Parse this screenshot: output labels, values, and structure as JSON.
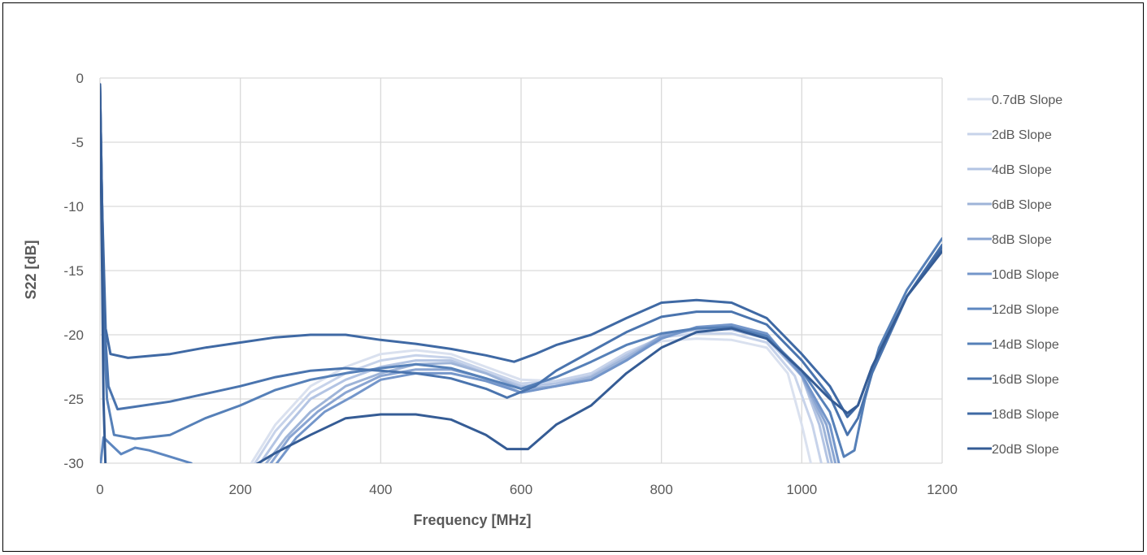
{
  "chart_data": {
    "type": "line",
    "title": "",
    "xlabel": "Frequency [MHz]",
    "ylabel": "S22 [dB]",
    "xlim": [
      0,
      1200
    ],
    "ylim": [
      -30,
      0
    ],
    "xticks": [
      "0",
      "200",
      "400",
      "600",
      "800",
      "1000",
      "1200"
    ],
    "yticks": [
      "0",
      "-5",
      "-10",
      "-15",
      "-20",
      "-25",
      "-30"
    ],
    "grid": true,
    "legend_position": "right",
    "series": [
      {
        "name": "0.7dB Slope",
        "color": "#dae1ef",
        "points": [
          [
            210,
            -30.5
          ],
          [
            250,
            -27
          ],
          [
            300,
            -24
          ],
          [
            350,
            -22.5
          ],
          [
            400,
            -21.5
          ],
          [
            450,
            -21.2
          ],
          [
            500,
            -21.5
          ],
          [
            550,
            -22.5
          ],
          [
            600,
            -23.5
          ],
          [
            650,
            -23.6
          ],
          [
            700,
            -23
          ],
          [
            750,
            -21.5
          ],
          [
            800,
            -20.5
          ],
          [
            850,
            -20.3
          ],
          [
            900,
            -20.4
          ],
          [
            950,
            -21
          ],
          [
            980,
            -23
          ],
          [
            1000,
            -27
          ],
          [
            1015,
            -30.5
          ]
        ]
      },
      {
        "name": "2dB Slope",
        "color": "#c7d3ea",
        "points": [
          [
            215,
            -30.5
          ],
          [
            250,
            -27.5
          ],
          [
            300,
            -24.5
          ],
          [
            350,
            -23
          ],
          [
            400,
            -22
          ],
          [
            450,
            -21.6
          ],
          [
            500,
            -21.8
          ],
          [
            550,
            -22.8
          ],
          [
            600,
            -23.8
          ],
          [
            650,
            -23.6
          ],
          [
            700,
            -23
          ],
          [
            750,
            -21.4
          ],
          [
            800,
            -20.2
          ],
          [
            850,
            -19.9
          ],
          [
            900,
            -19.9
          ],
          [
            950,
            -20.6
          ],
          [
            990,
            -23.2
          ],
          [
            1015,
            -27
          ],
          [
            1030,
            -30.5
          ]
        ]
      },
      {
        "name": "4dB Slope",
        "color": "#b3c4e3",
        "points": [
          [
            222,
            -30.5
          ],
          [
            260,
            -27.5
          ],
          [
            300,
            -25
          ],
          [
            350,
            -23.5
          ],
          [
            400,
            -22.5
          ],
          [
            450,
            -22
          ],
          [
            500,
            -22
          ],
          [
            550,
            -23
          ],
          [
            600,
            -24
          ],
          [
            650,
            -23.8
          ],
          [
            700,
            -23.2
          ],
          [
            750,
            -21.6
          ],
          [
            800,
            -20.1
          ],
          [
            850,
            -19.6
          ],
          [
            900,
            -19.6
          ],
          [
            950,
            -20.3
          ],
          [
            1000,
            -23.2
          ],
          [
            1025,
            -27
          ],
          [
            1040,
            -30.5
          ]
        ]
      },
      {
        "name": "6dB Slope",
        "color": "#9eb4d8",
        "points": [
          [
            230,
            -30.5
          ],
          [
            265,
            -28
          ],
          [
            300,
            -26
          ],
          [
            350,
            -24
          ],
          [
            400,
            -23
          ],
          [
            450,
            -22.3
          ],
          [
            500,
            -22.2
          ],
          [
            550,
            -23
          ],
          [
            600,
            -24.2
          ],
          [
            650,
            -24
          ],
          [
            700,
            -23.3
          ],
          [
            750,
            -21.8
          ],
          [
            800,
            -20.1
          ],
          [
            850,
            -19.5
          ],
          [
            900,
            -19.4
          ],
          [
            950,
            -20.1
          ],
          [
            1000,
            -23.2
          ],
          [
            1030,
            -27
          ],
          [
            1045,
            -30.5
          ]
        ]
      },
      {
        "name": "8dB Slope",
        "color": "#8aa5d2",
        "points": [
          [
            237,
            -30.5
          ],
          [
            270,
            -28
          ],
          [
            310,
            -26
          ],
          [
            350,
            -24.5
          ],
          [
            400,
            -23.2
          ],
          [
            450,
            -22.7
          ],
          [
            500,
            -22.7
          ],
          [
            550,
            -23.4
          ],
          [
            600,
            -24.5
          ],
          [
            650,
            -24
          ],
          [
            700,
            -23.5
          ],
          [
            750,
            -22
          ],
          [
            800,
            -20.1
          ],
          [
            850,
            -19.5
          ],
          [
            900,
            -19.3
          ],
          [
            950,
            -20
          ],
          [
            1000,
            -23.2
          ],
          [
            1035,
            -27
          ],
          [
            1050,
            -30.5
          ]
        ]
      },
      {
        "name": "10dB Slope",
        "color": "#7496ca",
        "points": [
          [
            245,
            -30.5
          ],
          [
            280,
            -28
          ],
          [
            320,
            -26
          ],
          [
            360,
            -24.8
          ],
          [
            400,
            -23.5
          ],
          [
            450,
            -23
          ],
          [
            500,
            -23
          ],
          [
            550,
            -23.6
          ],
          [
            600,
            -24.5
          ],
          [
            650,
            -24
          ],
          [
            700,
            -23.5
          ],
          [
            750,
            -22
          ],
          [
            800,
            -20.3
          ],
          [
            850,
            -19.4
          ],
          [
            900,
            -19.2
          ],
          [
            950,
            -19.9
          ],
          [
            1000,
            -23.1
          ],
          [
            1040,
            -27
          ],
          [
            1055,
            -30.5
          ]
        ]
      },
      {
        "name": "12dB Slope",
        "color": "#5e87c0",
        "points": [
          [
            0,
            -30.5
          ],
          [
            5,
            -28
          ],
          [
            30,
            -29.3
          ],
          [
            50,
            -28.8
          ],
          [
            70,
            -29
          ],
          [
            100,
            -29.5
          ],
          [
            130,
            -30
          ],
          [
            137,
            -30.5
          ]
        ]
      },
      {
        "name": "14dB Slope",
        "color": "#5680b8",
        "points": [
          [
            0,
            -0.5
          ],
          [
            3,
            -10
          ],
          [
            6,
            -20
          ],
          [
            10,
            -25
          ],
          [
            20,
            -27.8
          ],
          [
            50,
            -28.1
          ],
          [
            100,
            -27.8
          ],
          [
            150,
            -26.5
          ],
          [
            200,
            -25.5
          ],
          [
            250,
            -24.3
          ],
          [
            300,
            -23.5
          ],
          [
            350,
            -23
          ],
          [
            400,
            -22.6
          ],
          [
            450,
            -22.3
          ],
          [
            500,
            -22.6
          ],
          [
            550,
            -23.4
          ],
          [
            600,
            -24.2
          ],
          [
            650,
            -23.3
          ],
          [
            700,
            -22.1
          ],
          [
            750,
            -20.8
          ],
          [
            800,
            -19.9
          ],
          [
            850,
            -19.5
          ],
          [
            900,
            -19.4
          ],
          [
            950,
            -20.1
          ],
          [
            1000,
            -22.8
          ],
          [
            1040,
            -26
          ],
          [
            1060,
            -29.5
          ],
          [
            1075,
            -29
          ],
          [
            1090,
            -25
          ],
          [
            1110,
            -21
          ],
          [
            1150,
            -16.5
          ],
          [
            1200,
            -12.5
          ]
        ]
      },
      {
        "name": "16dB Slope",
        "color": "#4a74ae",
        "points": [
          [
            0,
            -0.5
          ],
          [
            3,
            -10
          ],
          [
            7,
            -19.5
          ],
          [
            12,
            -24
          ],
          [
            25,
            -25.8
          ],
          [
            50,
            -25.6
          ],
          [
            100,
            -25.2
          ],
          [
            150,
            -24.6
          ],
          [
            200,
            -24
          ],
          [
            250,
            -23.3
          ],
          [
            300,
            -22.8
          ],
          [
            350,
            -22.6
          ],
          [
            400,
            -22.8
          ],
          [
            450,
            -23
          ],
          [
            500,
            -23.4
          ],
          [
            550,
            -24.2
          ],
          [
            580,
            -24.9
          ],
          [
            620,
            -24
          ],
          [
            650,
            -22.8
          ],
          [
            700,
            -21.3
          ],
          [
            750,
            -19.8
          ],
          [
            800,
            -18.6
          ],
          [
            850,
            -18.2
          ],
          [
            900,
            -18.2
          ],
          [
            950,
            -19.2
          ],
          [
            1000,
            -22
          ],
          [
            1040,
            -24.8
          ],
          [
            1065,
            -27.8
          ],
          [
            1080,
            -26.5
          ],
          [
            1100,
            -23
          ],
          [
            1150,
            -17
          ],
          [
            1200,
            -13
          ]
        ]
      },
      {
        "name": "18dB Slope",
        "color": "#3f69a4",
        "points": [
          [
            0,
            -0.5
          ],
          [
            3,
            -10
          ],
          [
            8,
            -19.5
          ],
          [
            15,
            -21.5
          ],
          [
            40,
            -21.8
          ],
          [
            100,
            -21.5
          ],
          [
            150,
            -21
          ],
          [
            200,
            -20.6
          ],
          [
            250,
            -20.2
          ],
          [
            300,
            -20
          ],
          [
            350,
            -20
          ],
          [
            400,
            -20.4
          ],
          [
            450,
            -20.7
          ],
          [
            500,
            -21.1
          ],
          [
            550,
            -21.6
          ],
          [
            590,
            -22.1
          ],
          [
            620,
            -21.5
          ],
          [
            650,
            -20.8
          ],
          [
            700,
            -20
          ],
          [
            750,
            -18.7
          ],
          [
            800,
            -17.5
          ],
          [
            850,
            -17.3
          ],
          [
            900,
            -17.5
          ],
          [
            950,
            -18.7
          ],
          [
            1000,
            -21.5
          ],
          [
            1040,
            -24
          ],
          [
            1065,
            -26.4
          ],
          [
            1080,
            -25.5
          ],
          [
            1100,
            -22.5
          ],
          [
            1150,
            -17
          ],
          [
            1200,
            -13.2
          ]
        ]
      },
      {
        "name": "20dB Slope",
        "color": "#355c95",
        "points": [
          [
            0,
            -0.5
          ],
          [
            3,
            -15
          ],
          [
            5,
            -25
          ],
          [
            8,
            -30.5
          ],
          [
            210,
            -30.5
          ],
          [
            250,
            -29.2
          ],
          [
            300,
            -27.8
          ],
          [
            350,
            -26.5
          ],
          [
            400,
            -26.2
          ],
          [
            450,
            -26.2
          ],
          [
            500,
            -26.6
          ],
          [
            550,
            -27.8
          ],
          [
            580,
            -28.9
          ],
          [
            610,
            -28.9
          ],
          [
            650,
            -27
          ],
          [
            700,
            -25.5
          ],
          [
            750,
            -23
          ],
          [
            800,
            -21
          ],
          [
            850,
            -19.8
          ],
          [
            900,
            -19.5
          ],
          [
            950,
            -20.3
          ],
          [
            1000,
            -22.8
          ],
          [
            1040,
            -25
          ],
          [
            1065,
            -26.1
          ],
          [
            1080,
            -25.5
          ],
          [
            1100,
            -22.5
          ],
          [
            1150,
            -17
          ],
          [
            1200,
            -13.5
          ]
        ]
      }
    ]
  }
}
